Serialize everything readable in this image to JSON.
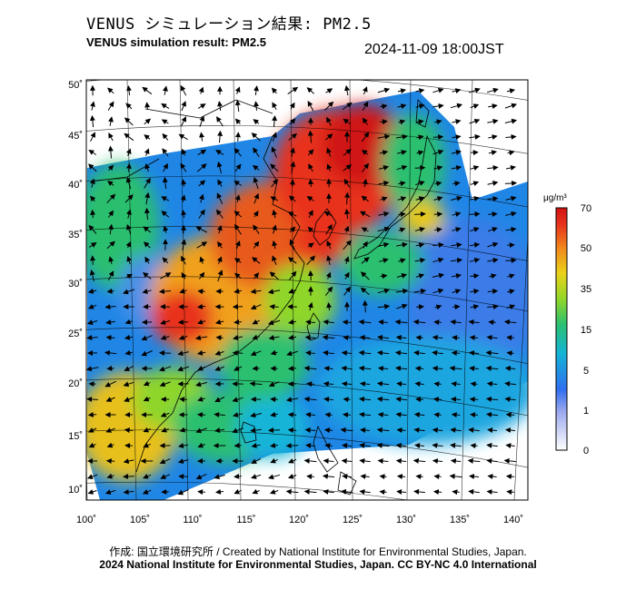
{
  "title_jp": "VENUS シミュレーション結果: PM2.5",
  "title_en": "VENUS simulation result: PM2.5",
  "timestamp": "2024-11-09 18:00JST",
  "credit_line1": "作成: 国立環境研究所 / Created by National Institute for Environmental Studies, Japan.",
  "credit_line2": "2024 National Institute for Environmental Studies, Japan. CC BY-NC 4.0 International",
  "colorbar": {
    "unit": "μg/m³",
    "ticks": [
      "70",
      "50",
      "35",
      "15",
      "5",
      "1",
      "0"
    ]
  },
  "axes": {
    "lon_labels": [
      "100˚",
      "105˚",
      "110˚",
      "115˚",
      "120˚",
      "125˚",
      "130˚",
      "135˚",
      "140˚"
    ],
    "lat_labels": [
      "50˚",
      "45˚",
      "40˚",
      "35˚",
      "30˚",
      "25˚",
      "20˚",
      "15˚",
      "10˚"
    ]
  },
  "palette": {
    "pm_scale": [
      "#ffffff",
      "#b8c4f0",
      "#2f6ff0",
      "#17b5d8",
      "#2cc070",
      "#8ed62a",
      "#e8c818",
      "#f07a1c",
      "#e8301c",
      "#cc1010"
    ]
  }
}
